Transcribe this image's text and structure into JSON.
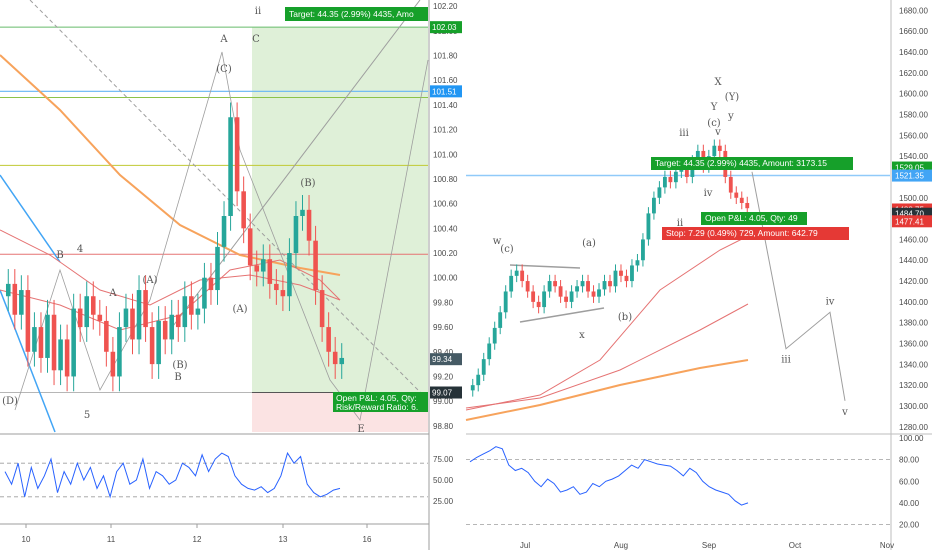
{
  "colors": {
    "up": "#26a69a",
    "down": "#ef5350",
    "target_green": "#16a02a",
    "stop_red": "#e53935",
    "price_blue": "#2196f3",
    "rsi_blue": "#2962ff",
    "profit_zone": "#dff0d8",
    "loss_zone": "#fbe3e3",
    "ma_orange": "#f7a35c",
    "ma_red": "#e57373",
    "ma_blue": "#42a5f5",
    "ma_green": "#8bc34a"
  },
  "left_panel": {
    "target_label": "Target: 44.35 (2.99%) 4435, Amo",
    "pnl_line1": "Open P&L: 4.05, Qty:",
    "pnl_line2": "Risk/Reward Ratio: 6.",
    "price_badges": [
      "102.03",
      "101.51",
      "99.34",
      "99.07"
    ],
    "wave_labels": [
      "ii",
      "A",
      "C",
      "(C)",
      "(A)",
      "A",
      "4",
      "5",
      "(B)",
      "B",
      "(A)",
      "(B)",
      "B",
      "(D)",
      "E"
    ],
    "rsi_ticks": [
      "75.00",
      "50.00",
      "25.00"
    ]
  },
  "right_panel": {
    "target_label": "Target: 44.35 (2.99%) 4435, Amount: 3173.15",
    "pnl_label": "Open P&L: 4.05, Qty: 49",
    "stop_label": "Stop: 7.29 (0.49%) 729, Amount: 642.79",
    "price_badges": [
      "1529.05",
      "1521.35",
      "1488.75",
      "1484.70",
      "1477.41"
    ],
    "wave_labels": [
      "X",
      "Y",
      "(Y)",
      "(c)",
      "y",
      "v",
      "iii",
      "iv",
      "ii",
      "w",
      "(c)",
      "(a)",
      "(b)",
      "x",
      "iv",
      "iii",
      "v"
    ],
    "rsi_ticks": [
      "100.00",
      "80.00",
      "60.00",
      "40.00",
      "20.00"
    ]
  },
  "chart_data": [
    {
      "type": "line",
      "title": "",
      "x_ticks": [
        "10",
        "11",
        "12",
        "13",
        "16"
      ],
      "y_ticks": [
        102.2,
        102.0,
        101.8,
        101.6,
        101.4,
        101.2,
        101.0,
        100.8,
        100.6,
        100.4,
        100.2,
        100.0,
        99.8,
        99.6,
        99.4,
        99.2,
        99.0,
        98.8
      ],
      "ylim": [
        98.75,
        102.25
      ],
      "series": [
        {
          "values": [
            99.95,
            99.7,
            99.9,
            99.4,
            99.6,
            99.35,
            99.7,
            99.25,
            99.5,
            99.2,
            99.75,
            99.6,
            99.85,
            99.7,
            99.65,
            99.4,
            99.2,
            99.6,
            99.75,
            99.5,
            99.9,
            99.6,
            99.3,
            99.65,
            99.5,
            99.7,
            99.6,
            99.85,
            99.7,
            99.75,
            100.0,
            99.9,
            100.25,
            100.5,
            101.3,
            100.7,
            100.4,
            100.1,
            100.05,
            100.15,
            99.95,
            99.9,
            99.85,
            100.2,
            100.5,
            100.55,
            100.3,
            99.9,
            99.6,
            99.4,
            99.3,
            99.35
          ]
        }
      ],
      "rsi": {
        "ylim": [
          0,
          100
        ],
        "levels": [
          70,
          30
        ],
        "values": [
          60,
          45,
          70,
          30,
          65,
          40,
          55,
          75,
          35,
          60,
          45,
          70,
          50,
          65,
          40,
          55,
          30,
          60,
          70,
          45,
          50,
          75,
          40,
          60,
          55,
          45,
          50,
          70,
          65,
          55,
          80,
          60,
          75,
          82,
          78,
          55,
          45,
          40,
          38,
          42,
          35,
          40,
          55,
          82,
          70,
          78,
          45,
          35,
          30,
          33,
          38,
          40
        ]
      }
    },
    {
      "type": "line",
      "title": "",
      "x_ticks": [
        "Jul",
        "Aug",
        "Sep",
        "Oct",
        "Nov"
      ],
      "y_ticks": [
        1680,
        1660,
        1640,
        1620,
        1600,
        1580,
        1560,
        1540,
        1520,
        1500,
        1480,
        1460,
        1440,
        1420,
        1400,
        1380,
        1360,
        1340,
        1320,
        1300,
        1280
      ],
      "ylim": [
        1275,
        1690
      ],
      "series": [
        {
          "values": [
            1320,
            1330,
            1345,
            1360,
            1375,
            1390,
            1410,
            1425,
            1430,
            1420,
            1410,
            1400,
            1395,
            1410,
            1420,
            1415,
            1405,
            1400,
            1410,
            1415,
            1420,
            1410,
            1405,
            1412,
            1420,
            1415,
            1430,
            1425,
            1420,
            1435,
            1440,
            1460,
            1485,
            1500,
            1510,
            1520,
            1515,
            1525,
            1530,
            1520,
            1535,
            1545,
            1530,
            1540,
            1550,
            1545,
            1520,
            1505,
            1500,
            1495,
            1490
          ]
        }
      ],
      "projection": {
        "labels": [
          "iii",
          "iv",
          "v"
        ],
        "values": [
          1355,
          1390,
          1305
        ]
      },
      "rsi": {
        "ylim": [
          15,
          100
        ],
        "levels": [
          80,
          20
        ],
        "values": [
          78,
          82,
          85,
          88,
          92,
          90,
          75,
          70,
          72,
          68,
          60,
          55,
          62,
          58,
          50,
          52,
          55,
          48,
          50,
          58,
          55,
          60,
          62,
          65,
          70,
          75,
          72,
          80,
          78,
          76,
          75,
          74,
          70,
          65,
          72,
          68,
          60,
          55,
          52,
          50,
          48,
          42,
          38,
          40
        ]
      }
    }
  ]
}
